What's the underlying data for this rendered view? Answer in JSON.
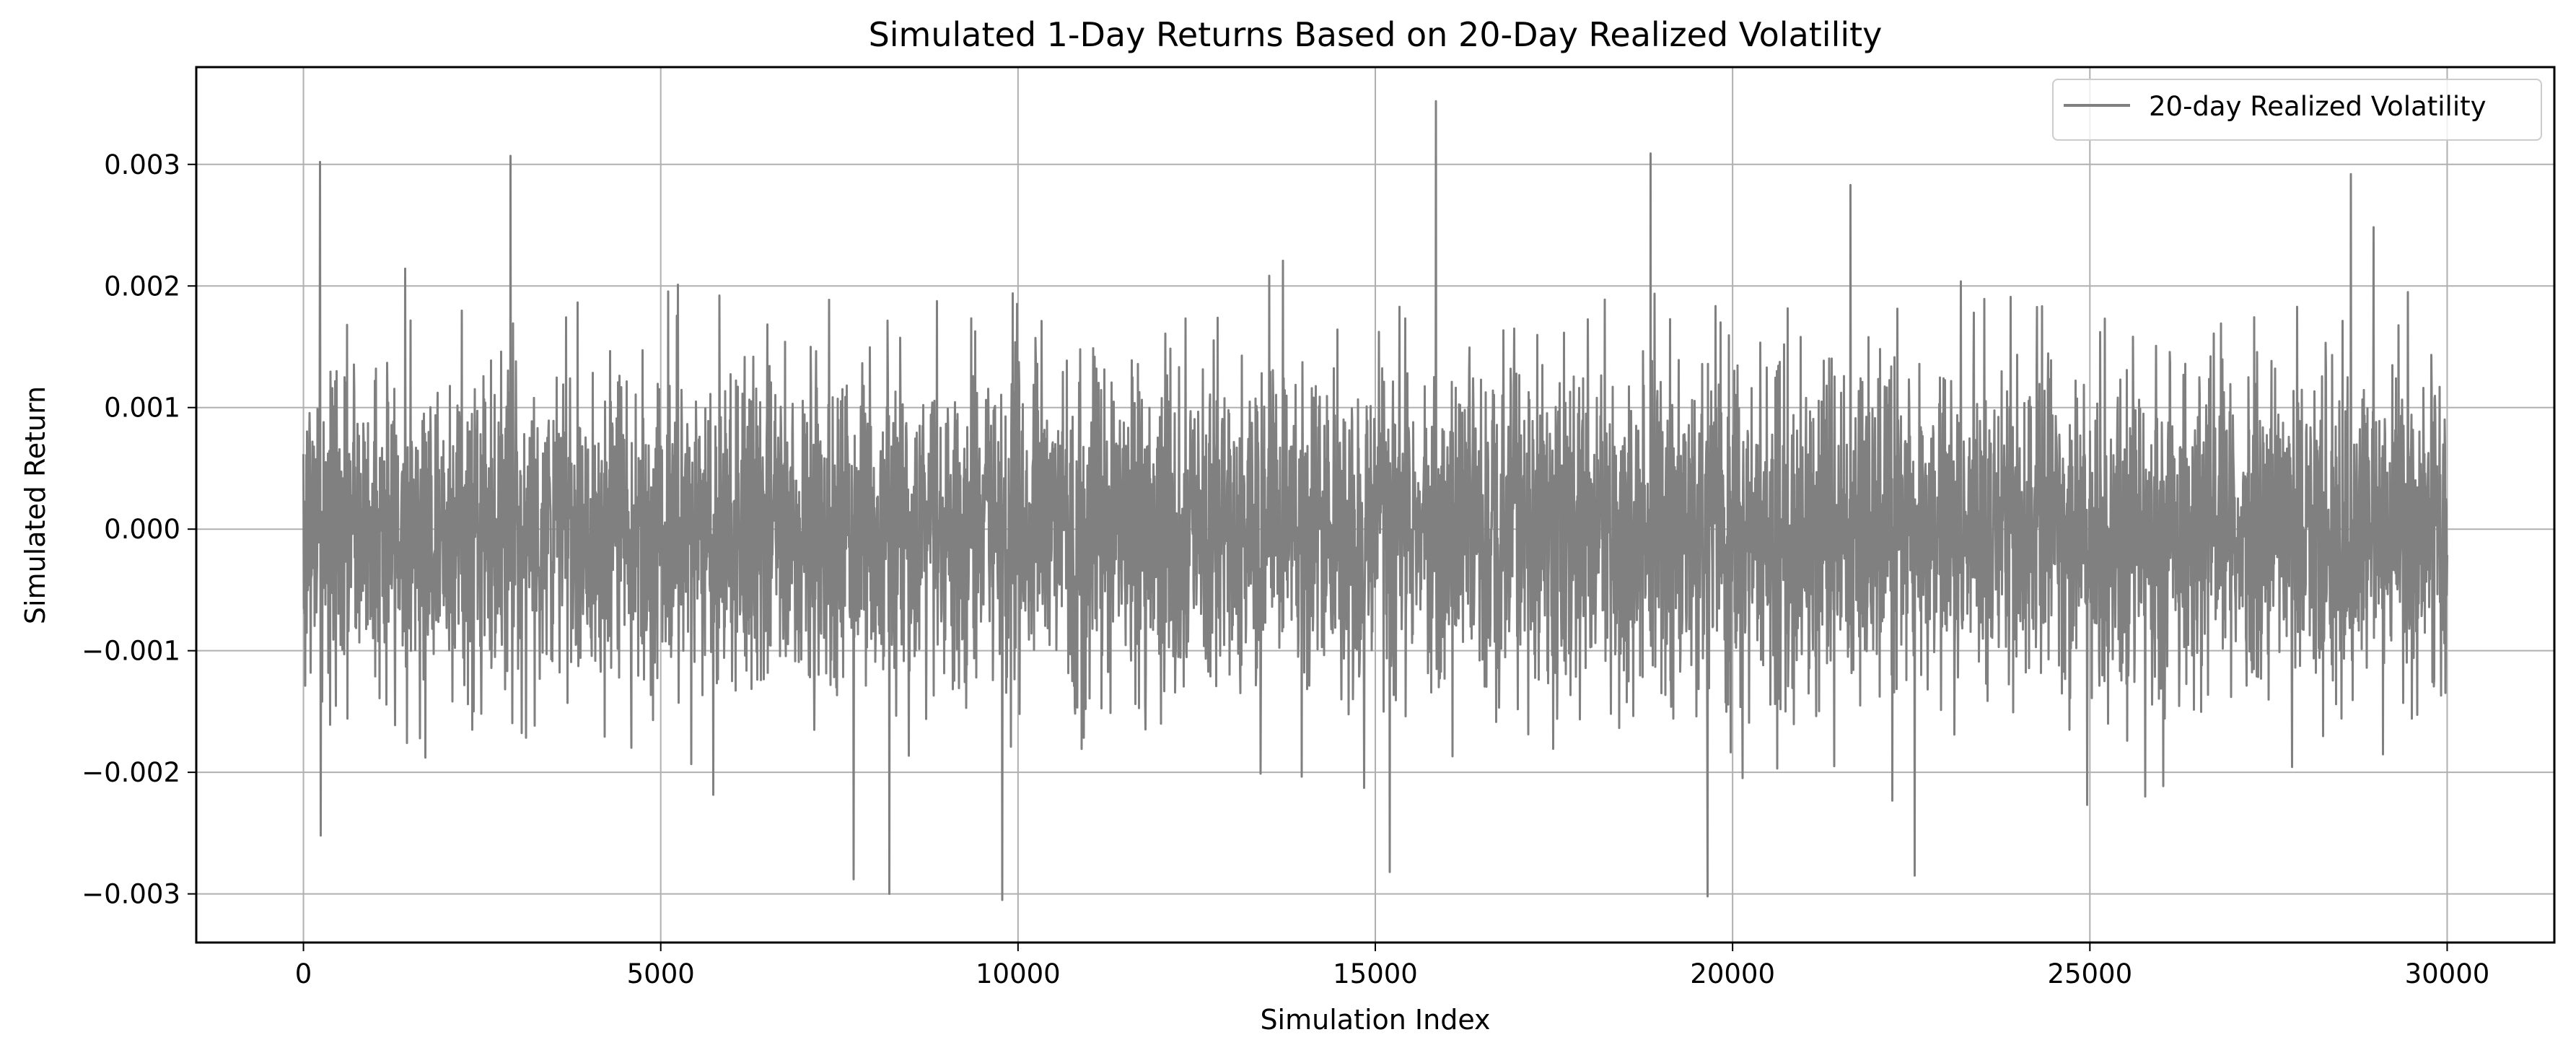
{
  "chart_data": {
    "type": "line",
    "title": "Simulated 1-Day Returns Based on 20-Day Realized Volatility",
    "xlabel": "Simulation Index",
    "ylabel": "Simulated Return",
    "xlim": [
      -1500,
      31500
    ],
    "ylim": [
      -0.0034,
      0.0038
    ],
    "xticks": [
      0,
      5000,
      10000,
      15000,
      20000,
      25000,
      30000
    ],
    "xtick_labels": [
      "0",
      "5000",
      "10000",
      "15000",
      "20000",
      "25000",
      "30000"
    ],
    "yticks": [
      -0.003,
      -0.002,
      -0.001,
      0.0,
      0.001,
      0.002,
      0.003
    ],
    "ytick_labels": [
      "−0.003",
      "−0.002",
      "−0.001",
      "0.000",
      "0.001",
      "0.002",
      "0.003"
    ],
    "grid": true,
    "legend_position": "top-right",
    "series": [
      {
        "name": "20-day Realized Volatility",
        "color": "#808080",
        "x_start": 0,
        "x_end": 30000,
        "n_points": 30000,
        "approx_std": 0.0007,
        "approx_range": [
          -0.00305,
          0.00352
        ],
        "notable_points": [
          {
            "x": 230,
            "y": 0.00302
          },
          {
            "x": 2900,
            "y": 0.00307
          },
          {
            "x": 15850,
            "y": 0.00352
          },
          {
            "x": 18850,
            "y": 0.00309
          },
          {
            "x": 9780,
            "y": -0.00305
          },
          {
            "x": 19650,
            "y": -0.00302
          },
          {
            "x": 8200,
            "y": -0.003
          },
          {
            "x": 7700,
            "y": -0.00288
          },
          {
            "x": 22550,
            "y": -0.00285
          },
          {
            "x": 15200,
            "y": -0.00282
          },
          {
            "x": 28650,
            "y": 0.00292
          },
          {
            "x": 240,
            "y": -0.00252
          },
          {
            "x": 21650,
            "y": 0.00283
          },
          {
            "x": 29450,
            "y": 0.00195
          }
        ]
      }
    ]
  }
}
